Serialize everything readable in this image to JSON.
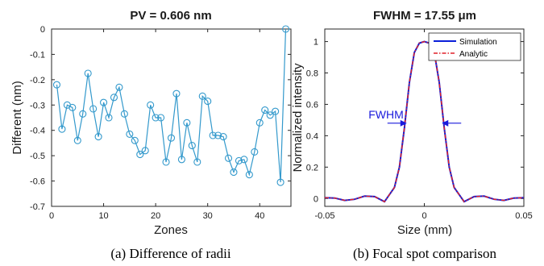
{
  "colors": {
    "left_series": "#3399cc",
    "simulation": "#0a1fd9",
    "analytic": "#e0202a",
    "annotation": "#1a1adc"
  },
  "chart_data": [
    {
      "type": "line",
      "title": "PV = 0.606 nm",
      "xlabel": "Zones",
      "ylabel": "Different (nm)",
      "caption": "(a) Difference of radii",
      "xlim": [
        0,
        46
      ],
      "ylim": [
        -0.7,
        0
      ],
      "xticks": [
        0,
        10,
        20,
        30,
        40
      ],
      "yticks": [
        0,
        -0.1,
        -0.2,
        -0.3,
        -0.4,
        -0.5,
        -0.6,
        -0.7
      ],
      "ytick_labels": [
        "0",
        "-0.1",
        "-0.2",
        "-0.3",
        "-0.4",
        "-0.5",
        "-0.6",
        "-0.7"
      ],
      "grid": false,
      "marker": "circle",
      "x": [
        1,
        2,
        3,
        4,
        5,
        6,
        7,
        8,
        9,
        10,
        11,
        12,
        13,
        14,
        15,
        16,
        17,
        18,
        19,
        20,
        21,
        22,
        23,
        24,
        25,
        26,
        27,
        28,
        29,
        30,
        31,
        32,
        33,
        34,
        35,
        36,
        37,
        38,
        39,
        40,
        41,
        42,
        43,
        44,
        45
      ],
      "y": [
        -0.22,
        -0.395,
        -0.3,
        -0.31,
        -0.44,
        -0.335,
        -0.175,
        -0.315,
        -0.425,
        -0.29,
        -0.35,
        -0.27,
        -0.23,
        -0.335,
        -0.415,
        -0.44,
        -0.495,
        -0.48,
        -0.3,
        -0.35,
        -0.35,
        -0.525,
        -0.43,
        -0.255,
        -0.515,
        -0.37,
        -0.46,
        -0.525,
        -0.265,
        -0.285,
        -0.42,
        -0.42,
        -0.425,
        -0.51,
        -0.565,
        -0.52,
        -0.515,
        -0.575,
        -0.485,
        -0.37,
        -0.32,
        -0.34,
        -0.325,
        -0.605,
        0
      ]
    },
    {
      "type": "line",
      "title": "FWHM = 17.55 μm",
      "xlabel": "Size (mm)",
      "ylabel": "Normalized intensity",
      "caption": "(b) Focal spot comparison",
      "xlim": [
        -0.05,
        0.05
      ],
      "ylim": [
        -0.05,
        1.08
      ],
      "xticks": [
        -0.05,
        0,
        0.05
      ],
      "xtick_labels": [
        "-0.05",
        "0",
        "0.05"
      ],
      "yticks": [
        0,
        0.2,
        0.4,
        0.6,
        0.8,
        1
      ],
      "ytick_labels": [
        "0",
        "0.2",
        "0.4",
        "0.6",
        "0.8",
        "1"
      ],
      "grid": false,
      "legend_position": "top-right",
      "annotation": {
        "text": "FWHM",
        "y": 0.48,
        "x_left": -0.0088,
        "x_right": 0.0088
      },
      "x": [
        -0.05,
        -0.045,
        -0.04,
        -0.035,
        -0.03,
        -0.025,
        -0.02,
        -0.015,
        -0.0125,
        -0.01,
        -0.0075,
        -0.005,
        -0.0025,
        0,
        0.0025,
        0.005,
        0.0075,
        0.01,
        0.0125,
        0.015,
        0.02,
        0.025,
        0.03,
        0.035,
        0.04,
        0.045,
        0.05
      ],
      "series": [
        {
          "name": "Simulation",
          "style": "solid",
          "y": [
            0.005,
            0.003,
            -0.012,
            -0.005,
            0.015,
            0.012,
            -0.02,
            0.07,
            0.2,
            0.45,
            0.74,
            0.93,
            0.99,
            1,
            0.99,
            0.93,
            0.74,
            0.45,
            0.2,
            0.07,
            -0.02,
            0.012,
            0.015,
            -0.005,
            -0.012,
            0.003,
            0.005
          ]
        },
        {
          "name": "Analytic",
          "style": "dashdot",
          "y": [
            0.005,
            0.003,
            -0.012,
            -0.005,
            0.015,
            0.012,
            -0.02,
            0.07,
            0.2,
            0.45,
            0.74,
            0.93,
            0.99,
            1,
            0.99,
            0.93,
            0.74,
            0.45,
            0.2,
            0.07,
            -0.02,
            0.012,
            0.015,
            -0.005,
            -0.012,
            0.003,
            0.005
          ]
        }
      ]
    }
  ]
}
